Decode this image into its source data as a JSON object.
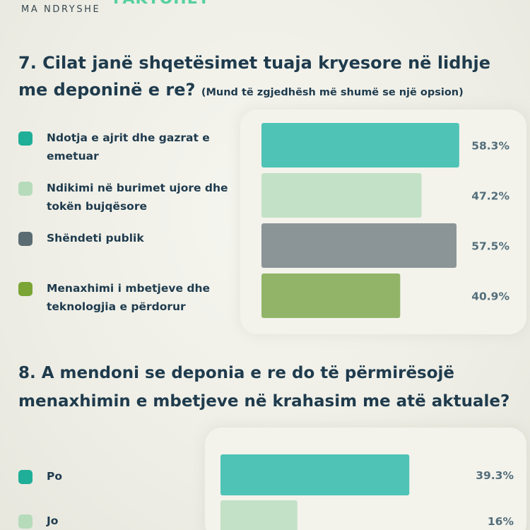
{
  "header": {
    "brand": "MA NDRYSHE",
    "brand_accent": "FAKTOHET"
  },
  "chart_data": [
    {
      "type": "bar",
      "title": "7. Cilat janë shqetësimet tuaja kryesore në lidhje me deponinë e re?",
      "subtitle": "(Mund të zgjedhësh më shumë se një opsion)",
      "categories": [
        "Ndotja e ajrit dhe gazrat e emetuar",
        "Ndikimi në burimet ujore dhe tokën bujqësore",
        "Shëndeti publik",
        "Menaxhimi i mbetjeve dhe teknologjia e përdorur"
      ],
      "label_lines": [
        [
          "Ndotja e ajrit dhe gazrat e",
          "emetuar"
        ],
        [
          "Ndikimi në burimet ujore dhe",
          "tokën bujqësore"
        ],
        [
          "Shëndeti publik"
        ],
        [
          "Menaxhimi i mbetjeve dhe",
          "teknologjia e përdorur"
        ]
      ],
      "values": [
        58.3,
        47.2,
        57.5,
        40.9
      ],
      "value_labels": [
        "58.3%",
        "47.2%",
        "57.5%",
        "40.9%"
      ],
      "colors": [
        "#4fc3b6",
        "#c3e1c6",
        "#8b9496",
        "#92b468"
      ],
      "swatch_colors": [
        "#1fae97",
        "#b6dbbb",
        "#5b6b72",
        "#7aa535"
      ],
      "xlim": [
        0,
        60
      ],
      "orientation": "horizontal",
      "legend": "left"
    },
    {
      "type": "bar",
      "title": "8. A mendoni se deponia e re do të përmirësojë menaxhimin e mbetjeve në krahasim me atë aktuale?",
      "categories": [
        "Po",
        "Jo"
      ],
      "values": [
        39.3,
        16
      ],
      "value_labels": [
        "39.3%",
        "16%"
      ],
      "colors": [
        "#4fc3b6",
        "#c3e1c6"
      ],
      "swatch_colors": [
        "#1fae97",
        "#b6dbbb"
      ],
      "xlim": [
        0,
        40
      ],
      "orientation": "horizontal",
      "legend": "left"
    }
  ]
}
